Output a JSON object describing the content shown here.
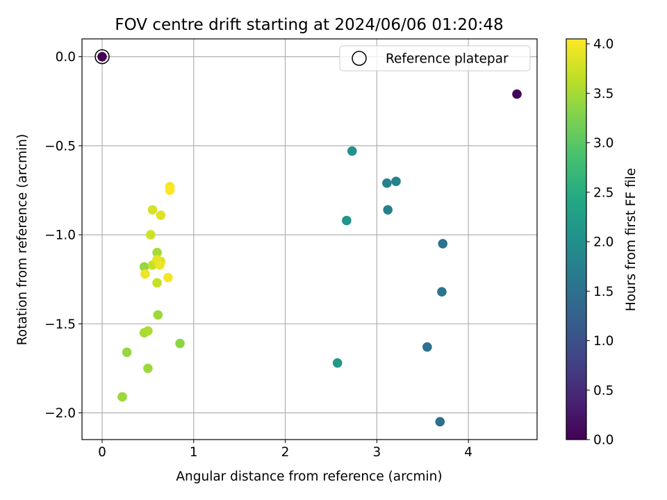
{
  "chart_data": {
    "type": "scatter",
    "title": "FOV centre drift starting at 2024/06/06 01:20:48",
    "xlabel": "Angular distance from reference (arcmin)",
    "ylabel": "Rotation from reference (arcmin)",
    "xlim": [
      -0.22,
      4.75
    ],
    "ylim": [
      -2.15,
      0.1
    ],
    "xticks": [
      0,
      1,
      2,
      3,
      4
    ],
    "yticks": [
      0.0,
      -0.5,
      -1.0,
      -1.5,
      -2.0
    ],
    "xtick_labels": [
      "0",
      "1",
      "2",
      "3",
      "4"
    ],
    "ytick_labels": [
      "0.0",
      "−0.5",
      "−1.0",
      "−1.5",
      "−2.0"
    ],
    "grid": true,
    "legend": {
      "position": "top-right",
      "entries": [
        {
          "label": "Reference platepar",
          "marker": "open-circle"
        }
      ]
    },
    "reference_point": {
      "x": 0.0,
      "y": 0.0
    },
    "colorbar": {
      "label": "Hours from first FF file",
      "colormap": "viridis",
      "range": [
        0.0,
        4.05
      ],
      "ticks": [
        0.0,
        0.5,
        1.0,
        1.5,
        2.0,
        2.5,
        3.0,
        3.5,
        4.0
      ],
      "tick_labels": [
        "0.0",
        "0.5",
        "1.0",
        "1.5",
        "2.0",
        "2.5",
        "3.0",
        "3.5",
        "4.0"
      ]
    },
    "points": [
      {
        "x": 0.0,
        "y": 0.0,
        "c": 0.0
      },
      {
        "x": 4.53,
        "y": -0.21,
        "c": 0.05
      },
      {
        "x": 3.69,
        "y": -2.05,
        "c": 1.45
      },
      {
        "x": 3.55,
        "y": -1.63,
        "c": 1.5
      },
      {
        "x": 3.71,
        "y": -1.32,
        "c": 1.55
      },
      {
        "x": 3.72,
        "y": -1.05,
        "c": 1.55
      },
      {
        "x": 3.12,
        "y": -0.86,
        "c": 1.75
      },
      {
        "x": 3.21,
        "y": -0.7,
        "c": 1.8
      },
      {
        "x": 3.11,
        "y": -0.71,
        "c": 1.8
      },
      {
        "x": 2.73,
        "y": -0.53,
        "c": 2.05
      },
      {
        "x": 2.67,
        "y": -0.92,
        "c": 2.1
      },
      {
        "x": 2.57,
        "y": -1.72,
        "c": 2.15
      },
      {
        "x": 0.85,
        "y": -1.61,
        "c": 3.35
      },
      {
        "x": 0.27,
        "y": -1.66,
        "c": 3.4
      },
      {
        "x": 0.5,
        "y": -1.75,
        "c": 3.45
      },
      {
        "x": 0.22,
        "y": -1.91,
        "c": 3.45
      },
      {
        "x": 0.46,
        "y": -1.18,
        "c": 3.4
      },
      {
        "x": 0.61,
        "y": -1.45,
        "c": 3.45
      },
      {
        "x": 0.46,
        "y": -1.55,
        "c": 3.5
      },
      {
        "x": 0.5,
        "y": -1.54,
        "c": 3.55
      },
      {
        "x": 0.6,
        "y": -1.1,
        "c": 3.5
      },
      {
        "x": 0.6,
        "y": -1.27,
        "c": 3.7
      },
      {
        "x": 0.55,
        "y": -1.17,
        "c": 3.7
      },
      {
        "x": 0.53,
        "y": -1.0,
        "c": 3.75
      },
      {
        "x": 0.55,
        "y": -0.86,
        "c": 3.8
      },
      {
        "x": 0.64,
        "y": -0.89,
        "c": 3.85
      },
      {
        "x": 0.64,
        "y": -1.15,
        "c": 3.85
      },
      {
        "x": 0.6,
        "y": -1.14,
        "c": 3.9
      },
      {
        "x": 0.63,
        "y": -1.17,
        "c": 3.95
      },
      {
        "x": 0.47,
        "y": -1.22,
        "c": 3.95
      },
      {
        "x": 0.72,
        "y": -1.24,
        "c": 4.0
      },
      {
        "x": 0.74,
        "y": -0.73,
        "c": 4.0
      },
      {
        "x": 0.74,
        "y": -0.75,
        "c": 4.05
      }
    ]
  }
}
